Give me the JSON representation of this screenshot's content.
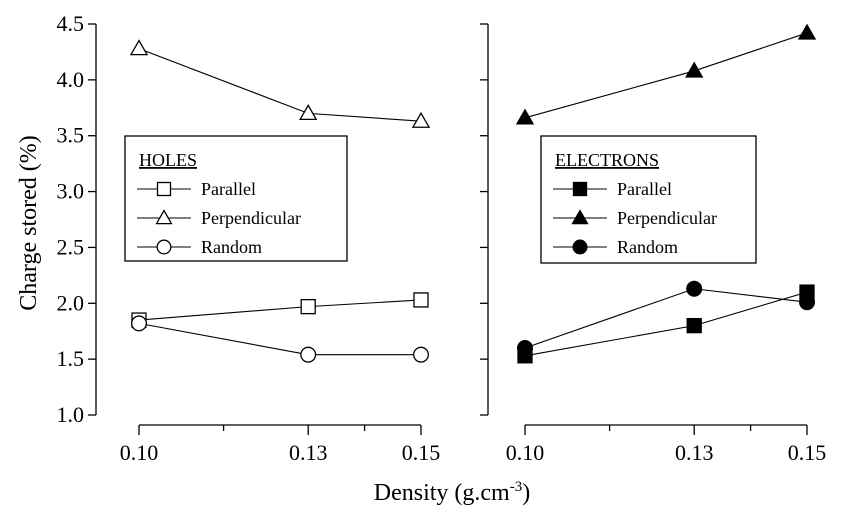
{
  "chart_data": {
    "type": "line",
    "ylabel": "Charge stored (%)",
    "xlabel": "Density (g.cm",
    "xlabel_sup": "-3",
    "xlabel_close": ")",
    "ylim": [
      1.0,
      4.5
    ],
    "y_ticks": [
      "1.0",
      "1.5",
      "2.0",
      "2.5",
      "3.0",
      "3.5",
      "4.0",
      "4.5"
    ],
    "y_tick_values": [
      1.0,
      1.5,
      2.0,
      2.5,
      3.0,
      3.5,
      4.0,
      4.5
    ],
    "x_tick_labels": [
      "0.10",
      "0.13",
      "0.15"
    ],
    "x_tick_values": [
      0.1,
      0.13,
      0.15
    ],
    "x_minor_ticks": [
      0.115,
      0.14
    ],
    "xlim": [
      0.1,
      0.15
    ],
    "panels": [
      {
        "legend_title": "HOLES",
        "filled": false,
        "series": [
          {
            "name": "Parallel",
            "marker": "square",
            "x": [
              0.1,
              0.13,
              0.15
            ],
            "y": [
              1.85,
              1.97,
              2.03
            ]
          },
          {
            "name": "Perpendicular",
            "marker": "triangle",
            "x": [
              0.1,
              0.13,
              0.15
            ],
            "y": [
              4.28,
              3.7,
              3.63
            ]
          },
          {
            "name": "Random",
            "marker": "circle",
            "x": [
              0.1,
              0.13,
              0.15
            ],
            "y": [
              1.82,
              1.54,
              1.54
            ]
          }
        ]
      },
      {
        "legend_title": "ELECTRONS",
        "filled": true,
        "series": [
          {
            "name": "Parallel",
            "marker": "square",
            "x": [
              0.1,
              0.13,
              0.15
            ],
            "y": [
              1.53,
              1.8,
              2.1
            ]
          },
          {
            "name": "Perpendicular",
            "marker": "triangle",
            "x": [
              0.1,
              0.13,
              0.15
            ],
            "y": [
              3.66,
              4.08,
              4.42
            ]
          },
          {
            "name": "Random",
            "marker": "circle",
            "x": [
              0.1,
              0.13,
              0.15
            ],
            "y": [
              1.6,
              2.13,
              2.01
            ]
          }
        ]
      }
    ]
  }
}
